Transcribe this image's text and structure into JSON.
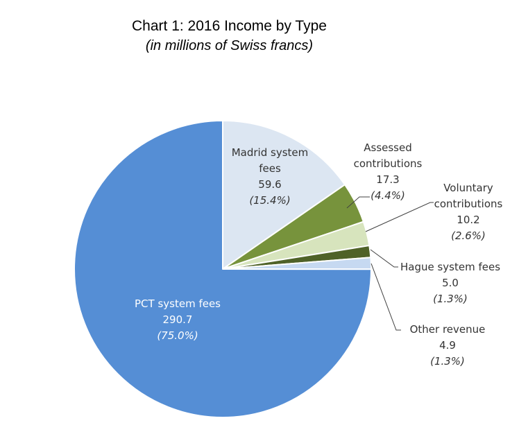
{
  "title": "Chart 1:  2016 Income by Type",
  "subtitle": "(in millions of Swiss francs)",
  "chart_data": {
    "type": "pie",
    "start_angle_deg": 0,
    "direction": "clockwise",
    "slices": [
      {
        "name": "Madrid system fees",
        "label_lines": [
          "Madrid system",
          "fees"
        ],
        "value": 59.6,
        "value_label": "59.6",
        "percent_label": "(15.4%)",
        "color": "#dce6f2"
      },
      {
        "name": "Assessed contributions",
        "label_lines": [
          "Assessed",
          "contributions"
        ],
        "value": 17.3,
        "value_label": "17.3",
        "percent_label": "(4.4%)",
        "color": "#77933c"
      },
      {
        "name": "Voluntary contributions",
        "label_lines": [
          "Voluntary",
          "contributions"
        ],
        "value": 10.2,
        "value_label": "10.2",
        "percent_label": "(2.6%)",
        "color": "#d7e4bd"
      },
      {
        "name": "Hague system fees",
        "label_lines": [
          "Hague system fees"
        ],
        "value": 5.0,
        "value_label": "5.0",
        "percent_label": "(1.3%)",
        "color": "#4f6228"
      },
      {
        "name": "Other revenue",
        "label_lines": [
          "Other revenue"
        ],
        "value": 4.9,
        "value_label": "4.9",
        "percent_label": "(1.3%)",
        "color": "#c6d9f1"
      },
      {
        "name": "PCT system fees",
        "label_lines": [
          "PCT system fees"
        ],
        "value": 290.7,
        "value_label": "290.7",
        "percent_label": "(75.0%)",
        "color": "#558ed5"
      }
    ]
  }
}
